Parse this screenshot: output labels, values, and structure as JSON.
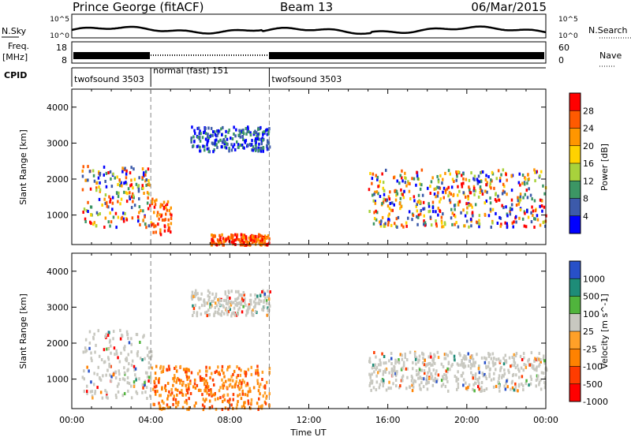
{
  "header": {
    "station": "Prince George (fitACF)",
    "beam": "Beam 13",
    "date": "06/Mar/2015"
  },
  "aux": {
    "nsky_label": "N.Sky",
    "nsky_ticks": [
      "10^5",
      "10^0"
    ],
    "nsearch_label": "N.Search",
    "nsearch_ticks": [
      "10^5",
      "10^0"
    ],
    "freq_label": "Freq.",
    "freq_unit": "[MHz]",
    "freq_ticks": [
      "18",
      "8"
    ],
    "nave_label": "Nave",
    "nave_ticks": [
      "60",
      "0"
    ],
    "cpid_label": "CPID",
    "cpid_segments": [
      {
        "label": "twofsound 3503",
        "start": 0,
        "end": 4
      },
      {
        "label": "normal (fast) 151",
        "start": 4,
        "end": 10
      },
      {
        "label": "twofsound 3503",
        "start": 10,
        "end": 24
      }
    ]
  },
  "chart_data": [
    {
      "type": "heatmap",
      "title": "",
      "ylabel": "Slant Range [km]",
      "xlabel": "",
      "xlim": [
        0,
        24
      ],
      "ylim": [
        180,
        4500
      ],
      "yticks": [
        1000,
        2000,
        3000,
        4000
      ],
      "markers_ut": [
        4,
        10
      ],
      "colorbar": {
        "label": "Power [dB]",
        "ticks": [
          "28",
          "24",
          "20",
          "16",
          "12",
          "8",
          "4"
        ],
        "colors": [
          "#ff0000",
          "#ff5a00",
          "#ff9600",
          "#ffd200",
          "#a8d23c",
          "#3c9664",
          "#3c5aaa",
          "#0000ff"
        ]
      },
      "regions": [
        {
          "ut": [
            0.5,
            4
          ],
          "range": [
            700,
            2400
          ],
          "level": "mixed"
        },
        {
          "ut": [
            4,
            5
          ],
          "range": [
            500,
            1500
          ],
          "level": "high"
        },
        {
          "ut": [
            7,
            10
          ],
          "range": [
            200,
            500
          ],
          "level": "high"
        },
        {
          "ut": [
            6,
            10
          ],
          "range": [
            2800,
            3500
          ],
          "level": "low"
        },
        {
          "ut": [
            15,
            24
          ],
          "range": [
            700,
            2300
          ],
          "level": "mixed"
        }
      ]
    },
    {
      "type": "heatmap",
      "title": "",
      "ylabel": "Slant Range [km]",
      "xlabel": "Time UT",
      "xlim": [
        0,
        24
      ],
      "ylim": [
        180,
        4500
      ],
      "yticks": [
        1000,
        2000,
        3000,
        4000
      ],
      "xticks": [
        "00:00",
        "04:00",
        "08:00",
        "12:00",
        "16:00",
        "20:00",
        "00:00"
      ],
      "markers_ut": [
        4,
        10
      ],
      "colorbar": {
        "label": "Velocity [m s^-1]",
        "ticks": [
          "1000",
          "500",
          "100",
          "25",
          "-25",
          "-100",
          "-500",
          "-1000"
        ],
        "colors": [
          "#2850c8",
          "#1e8c78",
          "#50b43c",
          "#c8c8c0",
          "#ffa028",
          "#ff8200",
          "#ff3c00",
          "#ff0000"
        ]
      },
      "regions": [
        {
          "ut": [
            0.5,
            4
          ],
          "range": [
            500,
            2400
          ],
          "level": "ground-scatter"
        },
        {
          "ut": [
            6,
            10
          ],
          "range": [
            2800,
            3500
          ],
          "level": "ground-scatter"
        },
        {
          "ut": [
            15,
            24
          ],
          "range": [
            700,
            1800
          ],
          "level": "ground-scatter"
        },
        {
          "ut": [
            4,
            10
          ],
          "range": [
            200,
            1400
          ],
          "level": "negative"
        }
      ]
    }
  ],
  "colors": {
    "axis": "#000000",
    "marker_line": "#888888",
    "ground_scatter": "#c8c8c0"
  }
}
